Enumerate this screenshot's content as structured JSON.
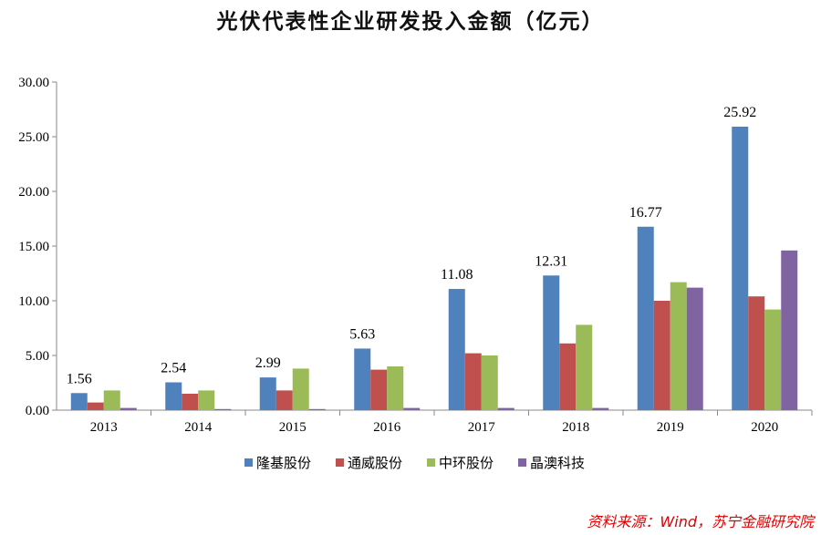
{
  "chart_data": {
    "type": "bar",
    "title": "光伏代表性企业研发投入金额（亿元）",
    "categories": [
      "2013",
      "2014",
      "2015",
      "2016",
      "2017",
      "2018",
      "2019",
      "2020"
    ],
    "series": [
      {
        "name": "隆基股份",
        "color": "#4f81bd",
        "values": [
          1.56,
          2.54,
          2.99,
          5.63,
          11.08,
          12.31,
          16.77,
          25.92
        ],
        "labels": [
          "1.56",
          "2.54",
          "2.99",
          "5.63",
          "11.08",
          "12.31",
          "16.77",
          "25.92"
        ]
      },
      {
        "name": "通威股份",
        "color": "#c0504d",
        "values": [
          0.7,
          1.5,
          1.8,
          3.7,
          5.2,
          6.1,
          10.0,
          10.4
        ]
      },
      {
        "name": "中环股份",
        "color": "#9bbb59",
        "values": [
          1.8,
          1.8,
          3.8,
          4.0,
          5.0,
          7.8,
          11.7,
          9.2
        ]
      },
      {
        "name": "晶澳科技",
        "color": "#8064a2",
        "values": [
          0.2,
          0.1,
          0.1,
          0.2,
          0.2,
          0.2,
          11.2,
          14.6
        ]
      }
    ],
    "ylim": [
      0,
      30
    ],
    "yticks": [
      "0.00",
      "5.00",
      "10.00",
      "15.00",
      "20.00",
      "25.00",
      "30.00"
    ],
    "grid": false,
    "legend": "bottom"
  },
  "source": "资料来源：Wind，苏宁金融研究院"
}
